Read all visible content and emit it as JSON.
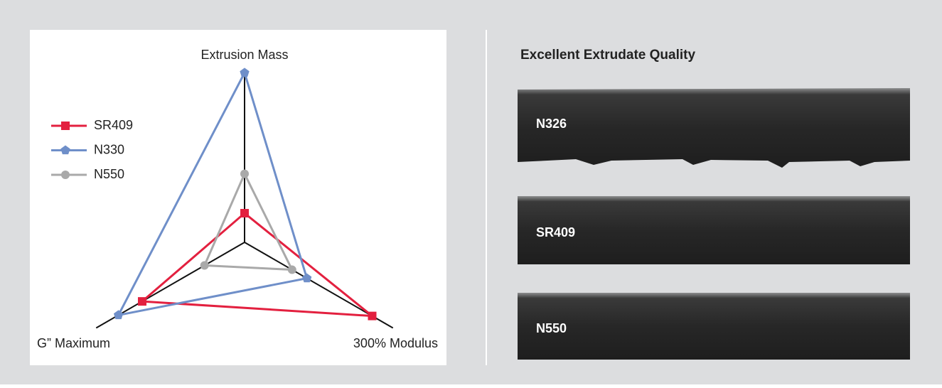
{
  "chart_data": {
    "type": "radar",
    "categories": [
      "Extrusion Mass",
      "300% Modulus",
      "G” Maximum"
    ],
    "rlim": [
      0,
      100
    ],
    "series": [
      {
        "name": "SR409",
        "color": "#e3203f",
        "marker": "square",
        "values": [
          17,
          86,
          69
        ]
      },
      {
        "name": "N330",
        "color": "#6f8fc9",
        "marker": "pentagon",
        "values": [
          99,
          42,
          85
        ]
      },
      {
        "name": "N550",
        "color": "#a9a9a9",
        "marker": "circle",
        "values": [
          40,
          32,
          27
        ]
      }
    ]
  },
  "panel": {
    "title": "Excellent Extrudate Quality",
    "samples": [
      "N326",
      "SR409",
      "N550"
    ]
  }
}
